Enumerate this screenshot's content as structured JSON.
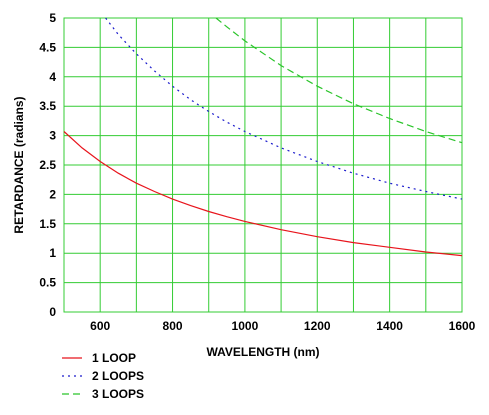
{
  "chart_data": {
    "type": "line",
    "xlabel": "WAVELENGTH (nm)",
    "ylabel": "RETARDANCE (radians)",
    "xlim": [
      500,
      1600
    ],
    "ylim": [
      0,
      5
    ],
    "x_ticks": [
      600,
      800,
      1000,
      1200,
      1400,
      1600
    ],
    "y_ticks": [
      0,
      0.5,
      1,
      1.5,
      2,
      2.5,
      3,
      3.5,
      4,
      4.5,
      5
    ],
    "x_grid_step": 100,
    "y_grid_step": 0.5,
    "grid": true,
    "grid_color": "#33cc33",
    "legend_position": "below-left",
    "series": [
      {
        "name": "1 LOOP",
        "color": "#e8141c",
        "style": "solid",
        "x": [
          500,
          550,
          600,
          650,
          700,
          750,
          800,
          850,
          900,
          950,
          1000,
          1100,
          1200,
          1300,
          1400,
          1500,
          1600
        ],
        "y": [
          3.07,
          2.79,
          2.56,
          2.36,
          2.19,
          2.05,
          1.92,
          1.81,
          1.71,
          1.62,
          1.54,
          1.4,
          1.28,
          1.18,
          1.1,
          1.02,
          0.96
        ]
      },
      {
        "name": "2 LOOPS",
        "color": "#1a1acc",
        "style": "dotted",
        "x": [
          615,
          650,
          700,
          750,
          800,
          850,
          900,
          950,
          1000,
          1100,
          1200,
          1300,
          1400,
          1500,
          1600
        ],
        "y": [
          5.0,
          4.72,
          4.39,
          4.1,
          3.84,
          3.61,
          3.41,
          3.23,
          3.07,
          2.79,
          2.56,
          2.36,
          2.19,
          2.05,
          1.92
        ]
      },
      {
        "name": "3 LOOPS",
        "color": "#2ac42a",
        "style": "dashed",
        "x": [
          920,
          950,
          1000,
          1100,
          1200,
          1300,
          1400,
          1500,
          1600
        ],
        "y": [
          5.0,
          4.85,
          4.61,
          4.19,
          3.84,
          3.54,
          3.29,
          3.07,
          2.88
        ]
      }
    ]
  }
}
